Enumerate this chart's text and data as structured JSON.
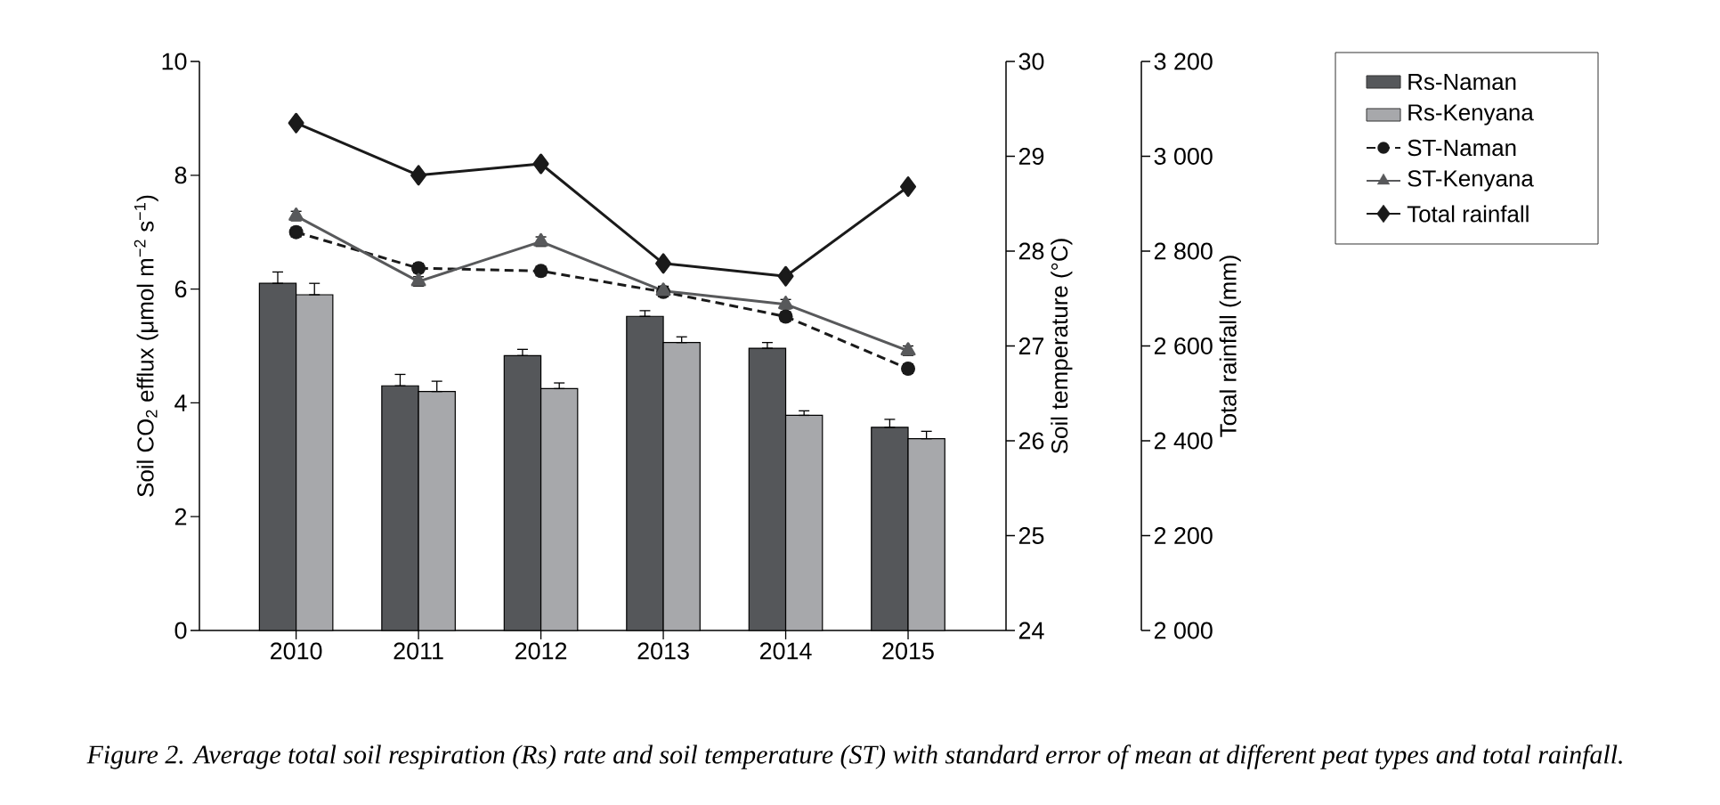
{
  "chart_data": {
    "type": "bar",
    "categories": [
      "2010",
      "2011",
      "2012",
      "2013",
      "2014",
      "2015"
    ],
    "series": [
      {
        "name": "Rs-Naman",
        "color": "#55575a",
        "values": [
          6.1,
          4.3,
          4.83,
          5.52,
          4.96,
          3.57
        ],
        "errors": [
          [
            6.1,
            6.3
          ],
          [
            4.3,
            4.5
          ],
          [
            4.83,
            4.94
          ],
          [
            5.52,
            5.62
          ],
          [
            4.96,
            5.06
          ],
          [
            3.57,
            3.71
          ]
        ]
      },
      {
        "name": "Rs-Kenyana",
        "color": "#a7a8ab",
        "values": [
          5.9,
          4.2,
          4.25,
          5.06,
          3.78,
          3.37
        ],
        "errors": [
          [
            5.9,
            6.1
          ],
          [
            4.2,
            4.38
          ],
          [
            4.25,
            4.35
          ],
          [
            5.06,
            5.16
          ],
          [
            3.78,
            3.86
          ],
          [
            3.37,
            3.5
          ]
        ]
      },
      {
        "name": "ST-Naman",
        "type": "line",
        "axis": "y2",
        "color": "#1a1a1a",
        "marker": "circle",
        "line_style": "dashed",
        "values": [
          28.2,
          27.82,
          27.79,
          27.57,
          27.31,
          26.76
        ],
        "errors": [
          0.05,
          0.05,
          0.05,
          0.05,
          0.05,
          0.05
        ]
      },
      {
        "name": "ST-Kenyana",
        "type": "line",
        "axis": "y2",
        "color": "#58595b",
        "marker": "triangle",
        "line_style": "solid",
        "values": [
          28.37,
          27.68,
          28.1,
          27.58,
          27.44,
          26.95
        ],
        "errors": [
          0.05,
          0.05,
          0.05,
          0.05,
          0.05,
          0.05
        ]
      },
      {
        "name": "Total rainfall",
        "type": "line",
        "axis": "y3",
        "color": "#1a1a1a",
        "marker": "diamond",
        "line_style": "solid",
        "values": [
          3070,
          2960,
          2984,
          2774,
          2747,
          2936
        ]
      }
    ],
    "ylabel": "Soil CO$_{2}$ efflux (μmol m$^{−2}$ s$^{−1}$)",
    "y2label": "Soil temperature (°C)",
    "y3label": "Total rainfall (mm)",
    "ylim": [
      0,
      10
    ],
    "yticks": [
      0,
      2,
      4,
      6,
      8,
      10
    ],
    "y2lim": [
      24,
      30
    ],
    "y2ticks": [
      24,
      25,
      26,
      27,
      28,
      29,
      30
    ],
    "y3lim": [
      2000,
      3200
    ],
    "y3ticks": [
      {
        "value": 2000,
        "label": "2 000"
      },
      {
        "value": 2200,
        "label": "2 200"
      },
      {
        "value": 2400,
        "label": "2 400"
      },
      {
        "value": 2600,
        "label": "2 600"
      },
      {
        "value": 2800,
        "label": "2 800"
      },
      {
        "value": 3000,
        "label": "3 000"
      },
      {
        "value": 3200,
        "label": "3 200"
      }
    ],
    "legend": "top right",
    "annotations": [
      "*Figure 2. Average total soil respiration (Rs) rate and soil temperature (ST) with standard error of mean at different peat types and total rainfall.*"
    ]
  }
}
